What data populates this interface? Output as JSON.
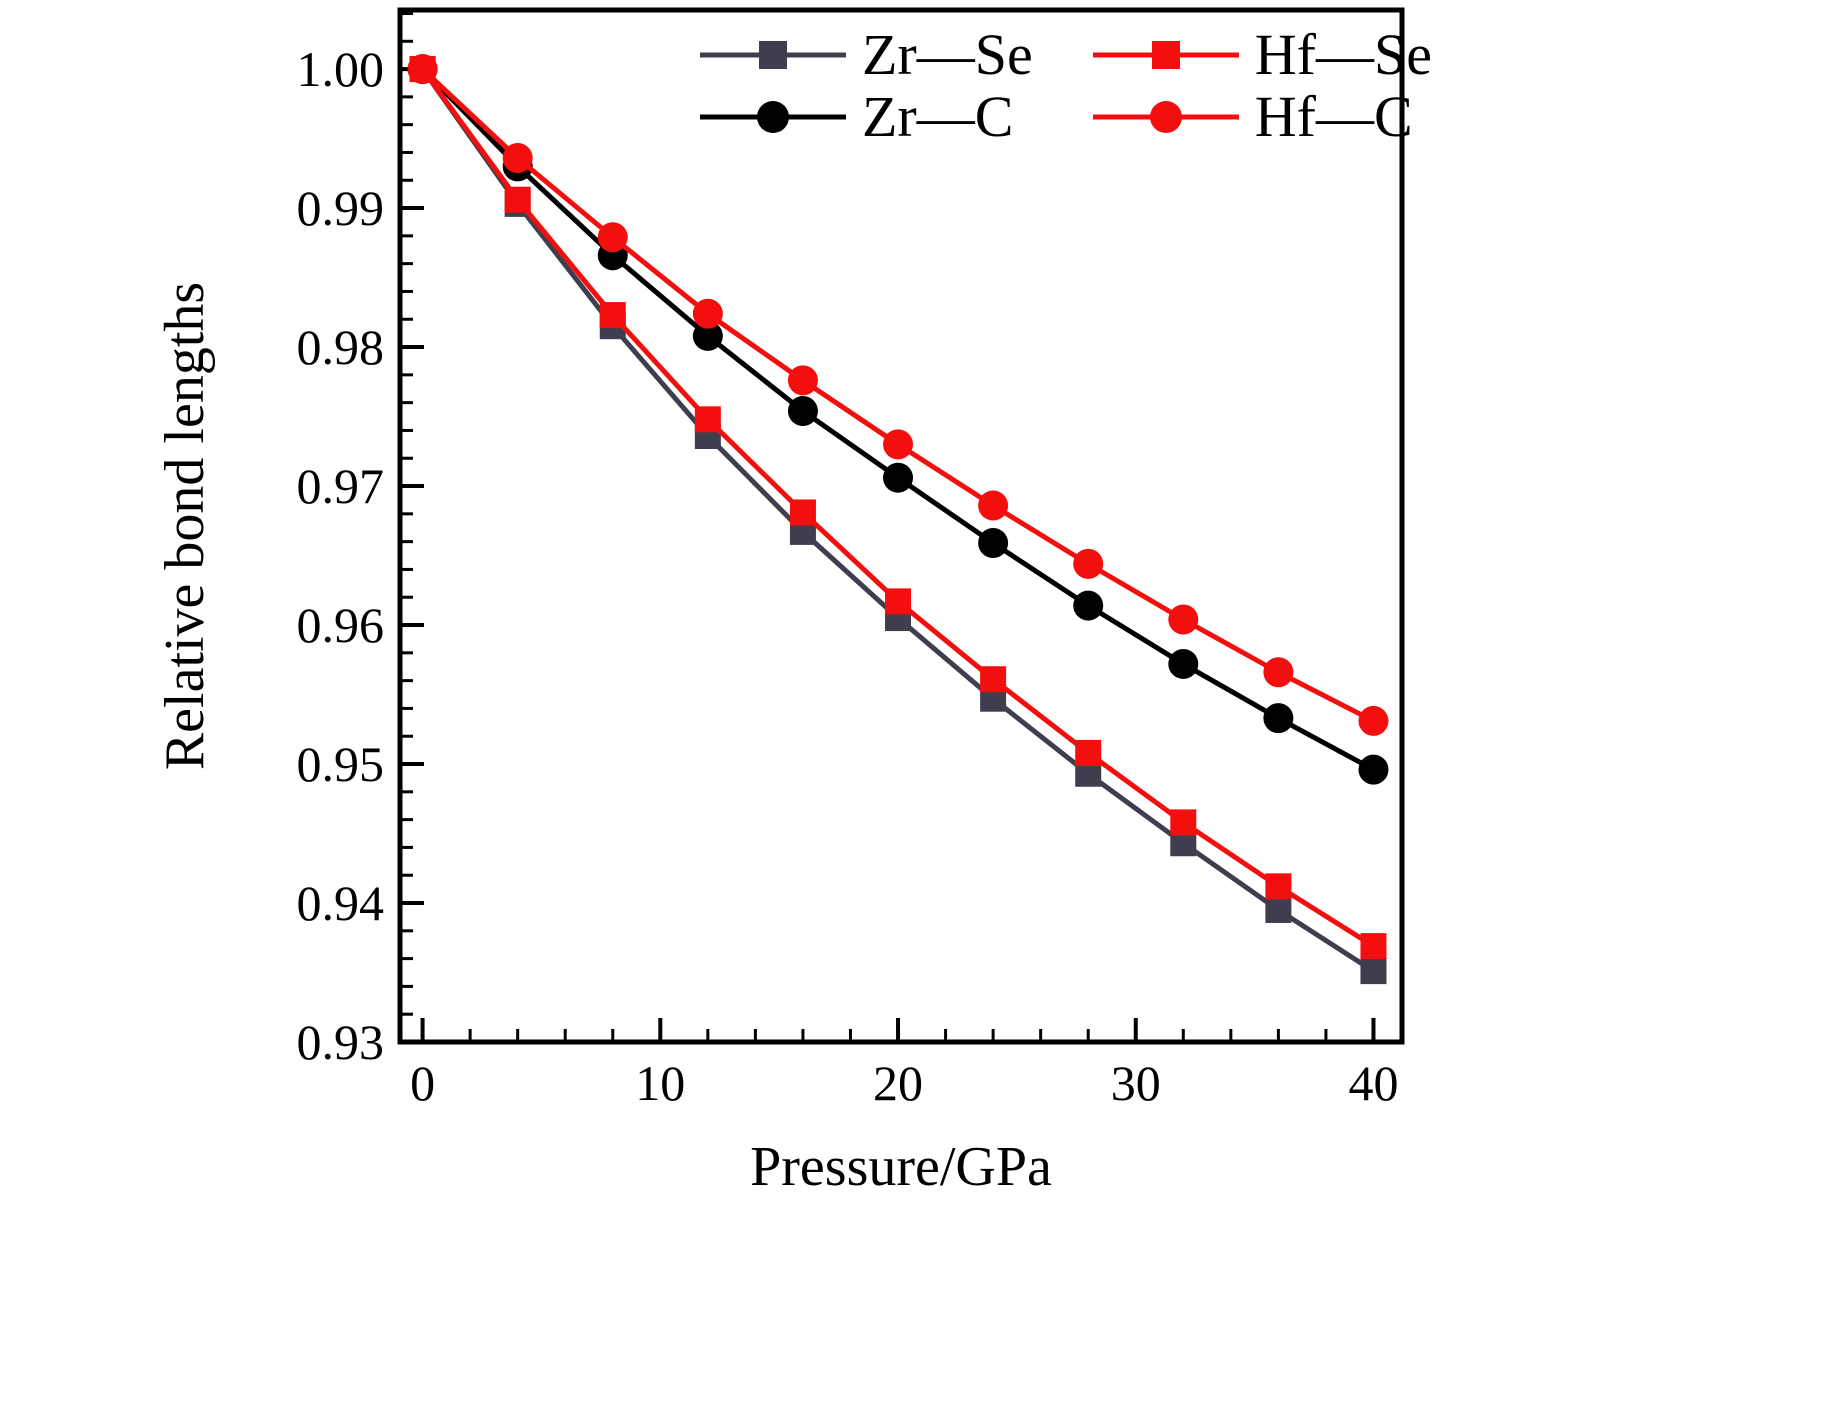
{
  "figure": {
    "background": "#ffffff",
    "frame_color": "#000000"
  },
  "chart_data": {
    "type": "line",
    "title": "",
    "xlabel": "Pressure/GPa",
    "ylabel": "Relative bond lengths",
    "x": [
      0,
      4,
      8,
      12,
      16,
      20,
      24,
      28,
      32,
      36,
      40
    ],
    "series": [
      {
        "name": "Zr—Se",
        "marker": "square",
        "color": "#3e3e4e",
        "values": [
          1.0,
          0.9903,
          0.9815,
          0.9736,
          0.9667,
          0.9605,
          0.9547,
          0.9493,
          0.9443,
          0.9395,
          0.9351
        ]
      },
      {
        "name": "Hf—Se",
        "marker": "square",
        "color": "#f40f0f",
        "values": [
          1.0,
          0.9906,
          0.9823,
          0.9748,
          0.9681,
          0.9617,
          0.9561,
          0.9508,
          0.9458,
          0.9412,
          0.9369
        ]
      },
      {
        "name": "Zr—C",
        "marker": "circle",
        "color": "#000000",
        "values": [
          1.0,
          0.993,
          0.9866,
          0.9808,
          0.9754,
          0.9706,
          0.9659,
          0.9614,
          0.9572,
          0.9533,
          0.9496
        ]
      },
      {
        "name": "Hf—C",
        "marker": "circle",
        "color": "#f40f0f",
        "values": [
          1.0,
          0.9936,
          0.9879,
          0.9824,
          0.9776,
          0.973,
          0.9686,
          0.9644,
          0.9604,
          0.9566,
          0.9531
        ]
      }
    ],
    "x_ticks": {
      "values": [
        0,
        10,
        20,
        30,
        40
      ],
      "labels": [
        "0",
        "10",
        "20",
        "30",
        "40"
      ],
      "minor_step": 2
    },
    "y_ticks": {
      "values": [
        1.0,
        0.99,
        0.98,
        0.97,
        0.96,
        0.95,
        0.94,
        0.93
      ],
      "labels": [
        "1.00",
        "0.99",
        "0.98",
        "0.97",
        "0.96",
        "0.95",
        "0.94",
        "0.93"
      ],
      "minor_step": 0.002
    },
    "xlim": [
      -0.95,
      41.2
    ],
    "ylim": [
      0.93,
      1.00425
    ],
    "grid": false,
    "legend_position": "top-inside",
    "legend_columns": 2
  }
}
